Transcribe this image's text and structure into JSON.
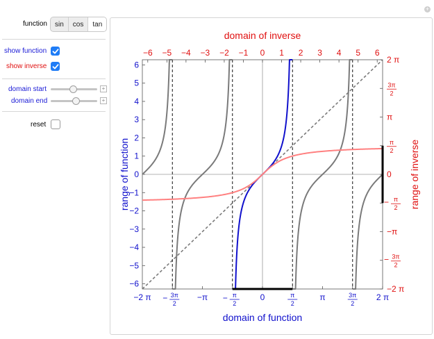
{
  "controls": {
    "function_label": "function",
    "function_options": [
      "sin",
      "cos",
      "tan"
    ],
    "function_selected": "tan",
    "show_function_label": "show function",
    "show_function_checked": true,
    "show_inverse_label": "show inverse",
    "show_inverse_checked": true,
    "domain_start_label": "domain start",
    "domain_start_fraction": 0.47,
    "domain_end_label": "domain end",
    "domain_end_fraction": 0.53,
    "reset_label": "reset",
    "reset_checked": false,
    "plus_glyph": "+"
  },
  "colors": {
    "function_blue": "#1010cc",
    "inverse_red": "#e01010",
    "inverse_curve": "#ff8080",
    "gray_curve": "#7a7a7a",
    "check_blue": "#1f7cf6"
  },
  "chart_data": {
    "type": "line",
    "function": "tan",
    "xlabel": "domain of function",
    "ylabel": "range of function",
    "top_label": "domain of inverse",
    "right_label": "range of inverse",
    "xlim": [
      -6.2832,
      6.2832
    ],
    "ylim": [
      -6.2832,
      6.2832
    ],
    "bottom_ticks": [
      "−2 π",
      "−3π/2",
      "−π",
      "−π/2",
      "0",
      "π/2",
      "π",
      "3π/2",
      "2 π"
    ],
    "left_ticks": [
      "−6",
      "−5",
      "−4",
      "−3",
      "−2",
      "−1",
      "0",
      "1",
      "2",
      "3",
      "4",
      "5",
      "6"
    ],
    "top_ticks": [
      "−6",
      "−5",
      "−4",
      "−3",
      "−2",
      "−1",
      "0",
      "1",
      "2",
      "3",
      "4",
      "5",
      "6"
    ],
    "right_ticks": [
      "2 π",
      "3π/2",
      "π",
      "π/2",
      "0",
      "−π/2",
      "−π",
      "−3π/2",
      "−2 π"
    ],
    "restricted_domain": [
      -1.5708,
      1.5708
    ],
    "inverse_range": [
      -1.5708,
      1.5708
    ],
    "asymptotes_x": [
      -4.7124,
      -1.5708,
      1.5708,
      4.7124
    ],
    "series": [
      {
        "role": "function (restricted)",
        "color": "#1010cc"
      },
      {
        "role": "function (full)",
        "color": "#7a7a7a"
      },
      {
        "role": "inverse",
        "color": "#ff8080"
      },
      {
        "role": "y = x",
        "color": "#7a7a7a",
        "dashed": true
      }
    ]
  }
}
